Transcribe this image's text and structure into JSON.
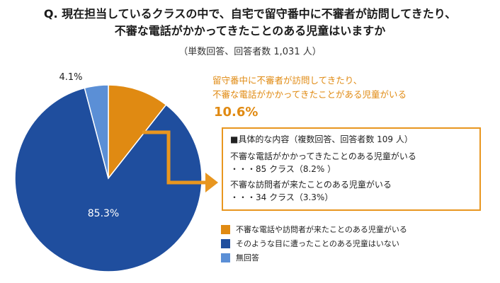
{
  "chart_data": {
    "type": "pie",
    "title_line1": "Q. 現在担当しているクラスの中で、自宅で留守番中に不審者が訪問してきたり、",
    "title_line2": "不審な電話がかかってきたことのある児童はいますか",
    "subtitle": "（単数回答、回答者数 1,031 人）",
    "slices": [
      {
        "label": "不審な電話や訪問者が来たことのある児童がいる",
        "value": 10.6,
        "value_label": "10.6%",
        "color": "#e08a12"
      },
      {
        "label": "そのような目に遭ったことのある児童はいない",
        "value": 85.3,
        "value_label": "85.3%",
        "color": "#1f4e9e"
      },
      {
        "label": "無回答",
        "value": 4.1,
        "value_label": "4.1%",
        "color": "#5b8fd6"
      }
    ]
  },
  "callout": {
    "heading_line1": "留守番中に不審者が訪問してきたり、",
    "heading_line2": "不審な電話がかかってきたことがある児童がいる",
    "percent": "10.6%"
  },
  "detail": {
    "heading": "■具体的な内容（複数回答、回答者数 109 人）",
    "items": [
      {
        "text": "不審な電話がかかってきたことのある児童がいる",
        "value": "・・・85 クラス（8.2% ）"
      },
      {
        "text": "不審な訪問者が来たことのある児童がいる",
        "value": "・・・34 クラス（3.3%）"
      }
    ]
  },
  "colors": {
    "arrow": "#e8961f",
    "box_border": "#e8961f"
  }
}
